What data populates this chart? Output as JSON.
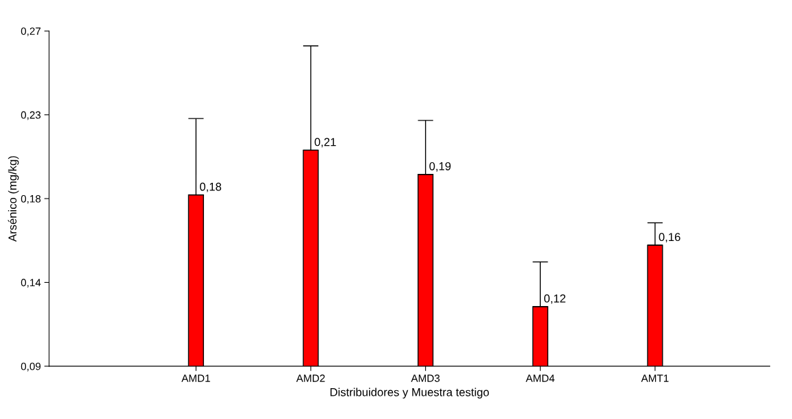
{
  "chart_data": {
    "type": "bar",
    "xlabel": "Distribuidores y Muestra testigo",
    "ylabel": "Arsénico (mg/kg)",
    "categories": [
      "AMD1",
      "AMD2",
      "AMD3",
      "AMD4",
      "AMT1"
    ],
    "values": [
      0.182,
      0.206,
      0.193,
      0.122,
      0.155
    ],
    "errors": [
      [
        0.182,
        0.223
      ],
      [
        0.206,
        0.262
      ],
      [
        0.193,
        0.222
      ],
      [
        0.122,
        0.146
      ],
      [
        0.155,
        0.167
      ]
    ],
    "value_labels": [
      "0,18",
      "0,21",
      "0,19",
      "0,12",
      "0,16"
    ],
    "color": "#ff0000",
    "ylim": [
      0.09,
      0.27
    ],
    "yticks": [
      {
        "value": 0.09,
        "label": "0,09"
      },
      {
        "value": 0.135,
        "label": "0,14"
      },
      {
        "value": 0.18,
        "label": "0,18"
      },
      {
        "value": 0.225,
        "label": "0,23"
      },
      {
        "value": 0.27,
        "label": "0,27"
      }
    ],
    "grid": false,
    "legend": false
  }
}
